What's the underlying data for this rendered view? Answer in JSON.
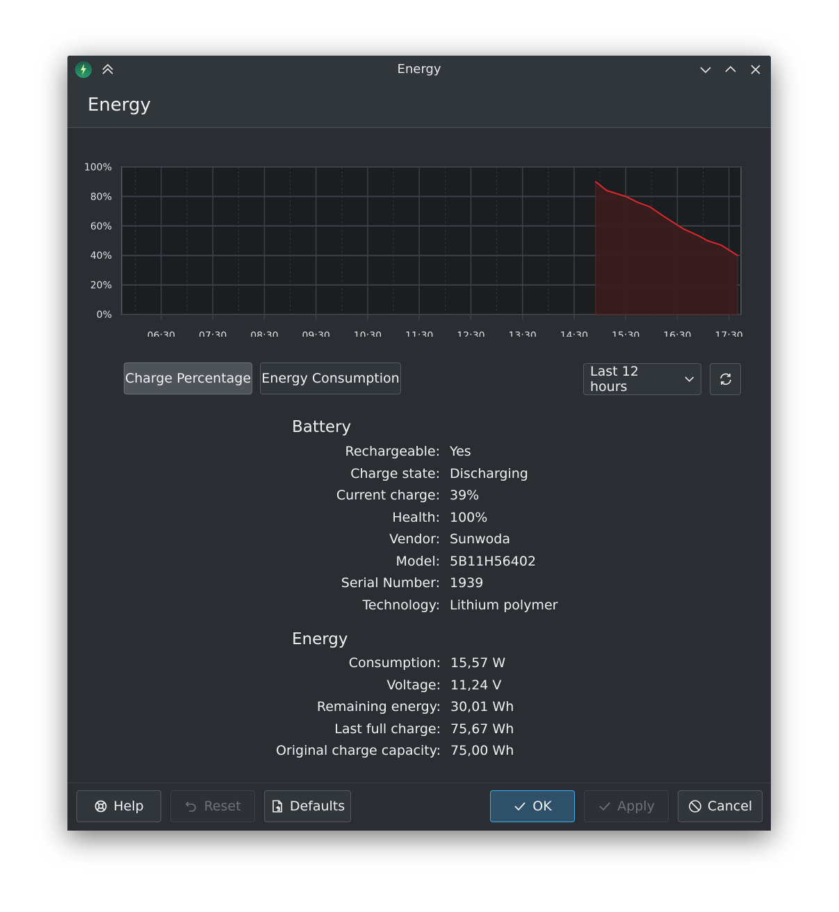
{
  "window": {
    "title": "Energy"
  },
  "header": {
    "title": "Energy"
  },
  "chart_data": {
    "type": "area",
    "title": "",
    "xlabel": "",
    "ylabel": "",
    "x_ticks": [
      "06:30",
      "07:30",
      "08:30",
      "09:30",
      "10:30",
      "11:30",
      "12:30",
      "13:30",
      "14:30",
      "15:30",
      "16:30",
      "17:30"
    ],
    "y_ticks": [
      "0%",
      "20%",
      "40%",
      "60%",
      "80%",
      "100%"
    ],
    "ylim": [
      0,
      100
    ],
    "xlim": [
      "05:44",
      "17:44"
    ],
    "grid": true,
    "series_color": "#e0282e",
    "series": [
      {
        "x": [
          "14:55",
          "15:08",
          "15:30",
          "15:44",
          "15:58",
          "16:13",
          "16:29",
          "16:37",
          "16:56",
          "17:05",
          "17:21",
          "17:40"
        ],
        "values": [
          90,
          84,
          80,
          76,
          73,
          67,
          61,
          58,
          53,
          50,
          47,
          40
        ]
      }
    ]
  },
  "controls": {
    "tab_charge": "Charge Percentage",
    "tab_energy": "Energy Consumption",
    "range": "Last 12 hours"
  },
  "battery": {
    "title": "Battery",
    "rows": [
      {
        "label": "Rechargeable:",
        "value": "Yes"
      },
      {
        "label": "Charge state:",
        "value": "Discharging"
      },
      {
        "label": "Current charge:",
        "value": "39%"
      },
      {
        "label": "Health:",
        "value": "100%"
      },
      {
        "label": "Vendor:",
        "value": "Sunwoda"
      },
      {
        "label": "Model:",
        "value": "5B11H56402"
      },
      {
        "label": "Serial Number:",
        "value": "1939"
      },
      {
        "label": "Technology:",
        "value": "Lithium polymer"
      }
    ]
  },
  "energy": {
    "title": "Energy",
    "rows": [
      {
        "label": "Consumption:",
        "value": "15,57 W"
      },
      {
        "label": "Voltage:",
        "value": "11,24 V"
      },
      {
        "label": "Remaining energy:",
        "value": "30,01 Wh"
      },
      {
        "label": "Last full charge:",
        "value": "75,67 Wh"
      },
      {
        "label": "Original charge capacity:",
        "value": "75,00 Wh"
      }
    ]
  },
  "footer": {
    "help": "Help",
    "reset": "Reset",
    "defaults": "Defaults",
    "ok": "OK",
    "apply": "Apply",
    "cancel": "Cancel"
  },
  "colors": {
    "accent": "#3daee9",
    "chart_line": "#e0282e",
    "chart_fill": "#3a1c1f"
  }
}
